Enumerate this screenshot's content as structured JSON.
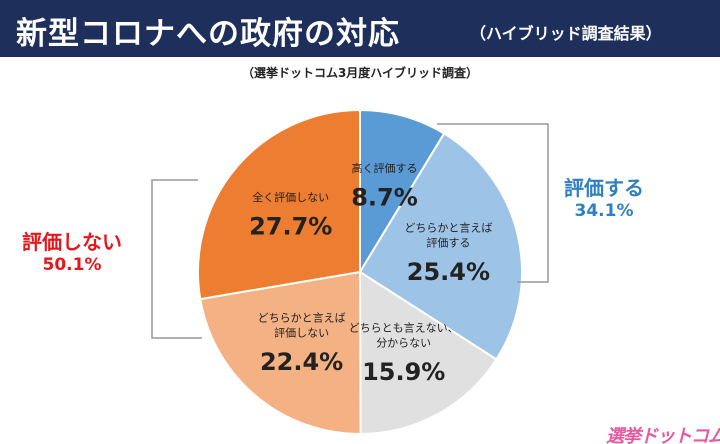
{
  "header": {
    "title": "新型コロナへの政府の対応",
    "subtitle": "（ハイブリッド調査結果）"
  },
  "source_note": "（選挙ドットコム3月度ハイブリッド調査）",
  "groups": {
    "positive": {
      "label": "評価する",
      "value": "34.1%"
    },
    "negative": {
      "label": "評価しない",
      "value": "50.1%"
    }
  },
  "logo_text": "選挙ドットコム",
  "colors": {
    "header_bg": "#1f2f5c",
    "positive_accent": "#2f7fc1",
    "negative_accent": "#e8161c"
  },
  "chart_data": {
    "type": "pie",
    "start": "12 o'clock, clockwise",
    "slices": [
      {
        "label": [
          "高く評価する"
        ],
        "value": 8.7,
        "display": "8.7%",
        "color": "#5b9bd5"
      },
      {
        "label": [
          "どちらかと言えば",
          "評価する"
        ],
        "value": 25.4,
        "display": "25.4%",
        "color": "#9dc3e6"
      },
      {
        "label": [
          "どちらとも言えない、",
          "分からない"
        ],
        "value": 15.9,
        "display": "15.9%",
        "color": "#e0e0e0"
      },
      {
        "label": [
          "どちらかと言えば",
          "評価しない"
        ],
        "value": 22.4,
        "display": "22.4%",
        "color": "#f4b183"
      },
      {
        "label": [
          "全く評価しない"
        ],
        "value": 27.7,
        "display": "27.7%",
        "color": "#ed7d31"
      }
    ]
  }
}
